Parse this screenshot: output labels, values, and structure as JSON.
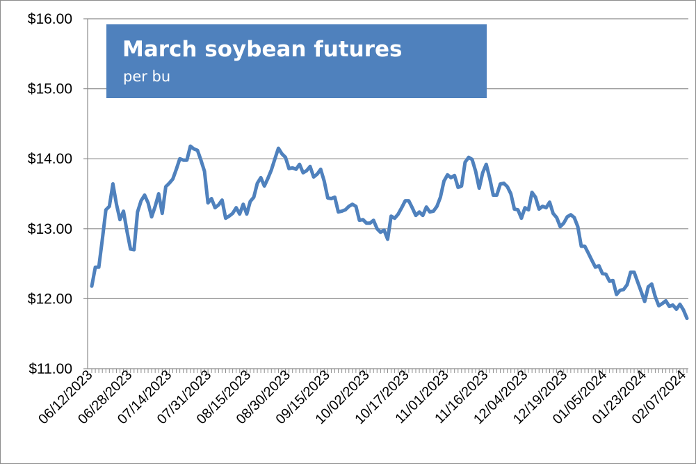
{
  "chart_data": {
    "type": "line",
    "title": "March soybean futures",
    "subtitle": "per bu",
    "xlabel": "",
    "ylabel": "",
    "ylim": [
      11,
      16
    ],
    "yticks": [
      "$11.00",
      "$12.00",
      "$13.00",
      "$14.00",
      "$15.00",
      "$16.00"
    ],
    "ytick_values": [
      11,
      12,
      13,
      14,
      15,
      16
    ],
    "x_tick_labels": [
      "06/12/2023",
      "06/28/2023",
      "07/14/2023",
      "07/31/2023",
      "08/15/2023",
      "08/30/2023",
      "09/15/2023",
      "10/02/2023",
      "10/17/2023",
      "11/01/2023",
      "11/16/2023",
      "12/04/2023",
      "12/19/2023",
      "01/05/2024",
      "01/23/2024",
      "02/07/2024"
    ],
    "grid": true,
    "legend": "none",
    "series_color": "#4F81BD",
    "series": [
      {
        "values": [
          12.18,
          12.45,
          12.45,
          12.85,
          13.27,
          13.32,
          13.64,
          13.35,
          13.13,
          13.25,
          12.96,
          12.71,
          12.7,
          13.24,
          13.4,
          13.48,
          13.37,
          13.17,
          13.32,
          13.5,
          13.22,
          13.6,
          13.65,
          13.71,
          13.85,
          14.0,
          13.98,
          13.98,
          14.18,
          14.14,
          14.12,
          13.98,
          13.82,
          13.37,
          13.43,
          13.3,
          13.34,
          13.41,
          13.15,
          13.18,
          13.22,
          13.3,
          13.21,
          13.35,
          13.21,
          13.39,
          13.45,
          13.65,
          13.73,
          13.61,
          13.72,
          13.84,
          14.0,
          14.15,
          14.07,
          14.02,
          13.86,
          13.87,
          13.85,
          13.92,
          13.8,
          13.83,
          13.89,
          13.74,
          13.78,
          13.85,
          13.68,
          13.44,
          13.43,
          13.45,
          13.24,
          13.25,
          13.27,
          13.32,
          13.35,
          13.32,
          13.12,
          13.13,
          13.08,
          13.08,
          13.12,
          13.0,
          12.95,
          12.98,
          12.85,
          13.18,
          13.15,
          13.21,
          13.3,
          13.4,
          13.4,
          13.3,
          13.19,
          13.24,
          13.19,
          13.31,
          13.24,
          13.25,
          13.32,
          13.45,
          13.68,
          13.77,
          13.73,
          13.76,
          13.59,
          13.61,
          13.95,
          14.02,
          13.99,
          13.82,
          13.58,
          13.8,
          13.92,
          13.72,
          13.48,
          13.48,
          13.64,
          13.65,
          13.6,
          13.5,
          13.28,
          13.27,
          13.15,
          13.3,
          13.27,
          13.52,
          13.45,
          13.28,
          13.32,
          13.3,
          13.38,
          13.22,
          13.16,
          13.03,
          13.08,
          13.17,
          13.2,
          13.16,
          13.03,
          12.75,
          12.75,
          12.65,
          12.55,
          12.45,
          12.47,
          12.36,
          12.35,
          12.25,
          12.26,
          12.06,
          12.12,
          12.13,
          12.2,
          12.38,
          12.38,
          12.24,
          12.1,
          11.96,
          12.17,
          12.21,
          12.03,
          11.9,
          11.93,
          11.97,
          11.89,
          11.91,
          11.85,
          11.92,
          11.84,
          11.72
        ]
      }
    ]
  }
}
